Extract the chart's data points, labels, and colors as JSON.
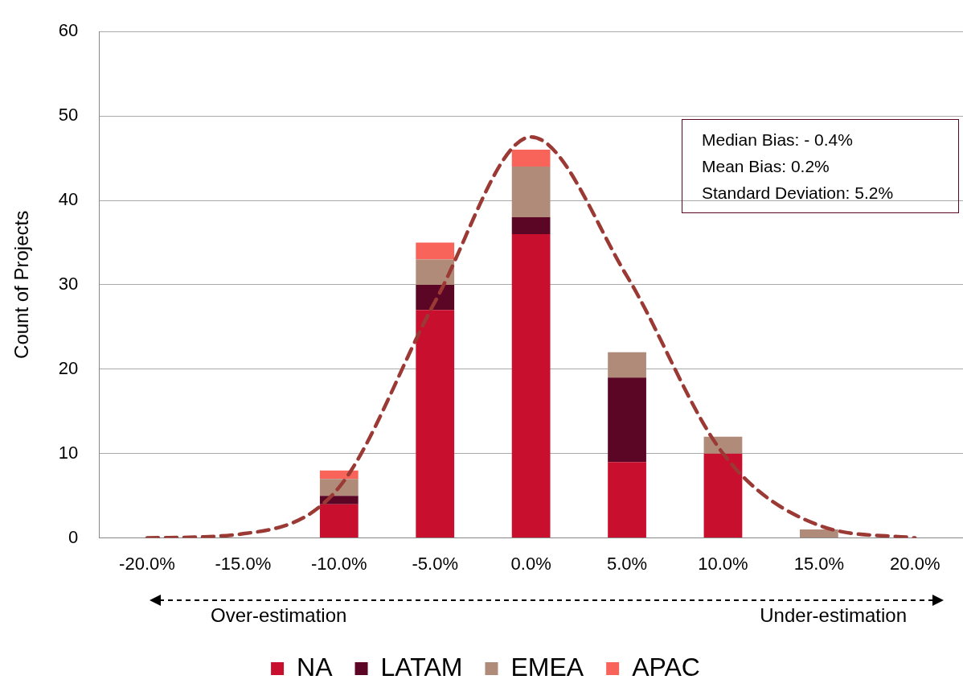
{
  "chart_data": {
    "type": "bar",
    "stacked": true,
    "ylabel": "Count of Projects",
    "categories": [
      "-20.0%",
      "-15.0%",
      "-10.0%",
      "-5.0%",
      "0.0%",
      "5.0%",
      "10.0%",
      "15.0%",
      "20.0%"
    ],
    "series": [
      {
        "name": "NA",
        "color": "#c8102e",
        "values": [
          0,
          0,
          4,
          27,
          36,
          9,
          10,
          0,
          0
        ]
      },
      {
        "name": "LATAM",
        "color": "#5c0626",
        "values": [
          0,
          0,
          1,
          3,
          2,
          10,
          0,
          0,
          0
        ]
      },
      {
        "name": "EMEA",
        "color": "#b08b7a",
        "values": [
          0,
          0,
          2,
          3,
          6,
          3,
          2,
          1,
          0
        ]
      },
      {
        "name": "APAC",
        "color": "#f8635a",
        "values": [
          0,
          0,
          1,
          2,
          2,
          0,
          0,
          0,
          0
        ]
      },
      {
        "type": "line",
        "color": "#9b3a35",
        "line_style": "dashed",
        "marker": "none",
        "values": [
          0,
          0.5,
          6,
          28,
          47.5,
          31,
          10,
          1.5,
          0
        ]
      }
    ],
    "ylim": [
      0,
      60
    ],
    "yticks": [
      0,
      10,
      20,
      30,
      40,
      50,
      60
    ],
    "grid": "y",
    "legend": "bottom",
    "annotations": [
      "Median  Bias: - 0.4%",
      "Mean Bias: 0.2%",
      "Standard Deviation: 5.2%",
      "Over-estimation",
      "Under-estimation"
    ]
  }
}
